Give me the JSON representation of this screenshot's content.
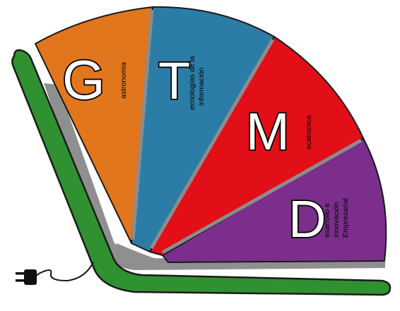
{
  "segments": [
    {
      "id": "gastronomia",
      "letter": "G",
      "lines": [
        "astronomia"
      ],
      "color": "#e2761c"
    },
    {
      "id": "tecnologias",
      "letter": "T",
      "lines": [
        "ecnologías de la",
        "información"
      ],
      "color": "#2b7ca6"
    },
    {
      "id": "mecatronica",
      "letter": "M",
      "lines": [
        "ecatronica"
      ],
      "color": "#e20e18"
    },
    {
      "id": "desarrollo",
      "letter": "D",
      "lines": [
        "esarrollo e",
        "innovación",
        "Empresarial"
      ],
      "color": "#7b2e8c"
    }
  ],
  "colors": {
    "book_green": "#2f9130",
    "shadow_gray": "#8f8f8f",
    "divider_gray": "#8c8c8c",
    "outline": "#1a1a1a",
    "plug": "#111111"
  },
  "icons": {
    "plug": "power-plug-icon",
    "cord": "power-cord"
  }
}
